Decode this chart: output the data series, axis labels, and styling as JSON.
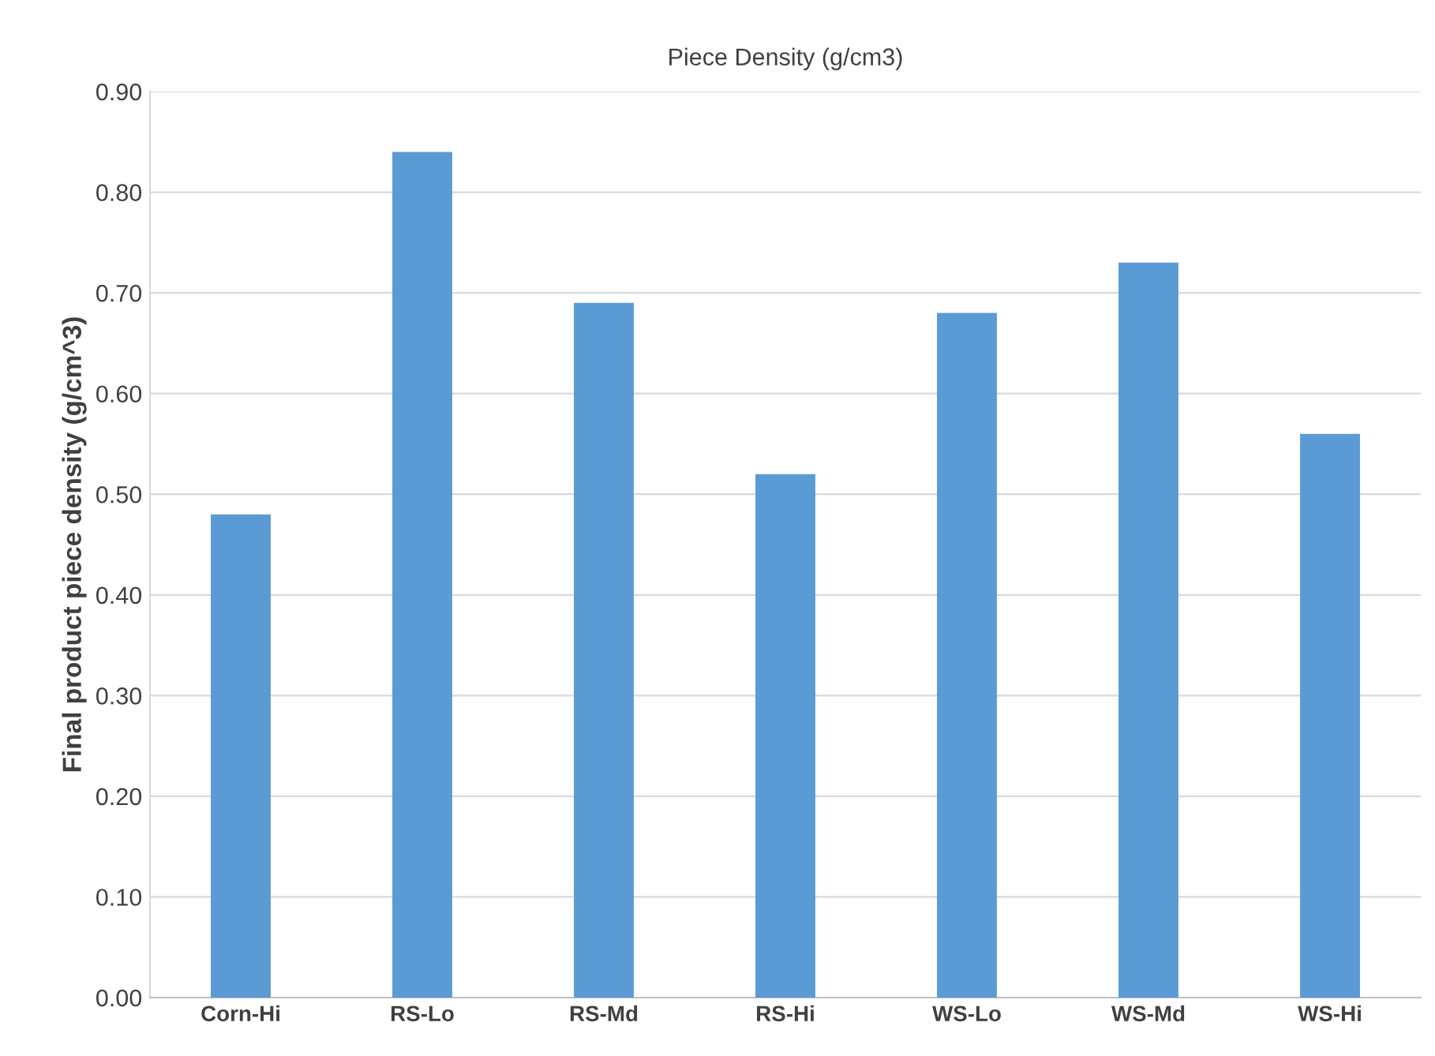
{
  "chart_data": {
    "type": "bar",
    "title": "Piece Density (g/cm3)",
    "ylabel": "Final product piece density (g/cm^3)",
    "categories": [
      "Corn-Hi",
      "RS-Lo",
      "RS-Md",
      "RS-Hi",
      "WS-Lo",
      "WS-Md",
      "WS-Hi"
    ],
    "values": [
      0.48,
      0.84,
      0.69,
      0.52,
      0.68,
      0.73,
      0.56
    ],
    "color": "#5b9bd5",
    "ylim": [
      0,
      0.9
    ],
    "yticks": [
      {
        "value": 0,
        "label": "0.00"
      },
      {
        "value": 0.1,
        "label": "0.10"
      },
      {
        "value": 0.2,
        "label": "0.20"
      },
      {
        "value": 0.3,
        "label": "0.30"
      },
      {
        "value": 0.4,
        "label": "0.40"
      },
      {
        "value": 0.5,
        "label": "0.50"
      },
      {
        "value": 0.6,
        "label": "0.60"
      },
      {
        "value": 0.7,
        "label": "0.70"
      },
      {
        "value": 0.8,
        "label": "0.80"
      },
      {
        "value": 0.9,
        "label": "0.90"
      }
    ],
    "grid": "y",
    "legend": false
  }
}
